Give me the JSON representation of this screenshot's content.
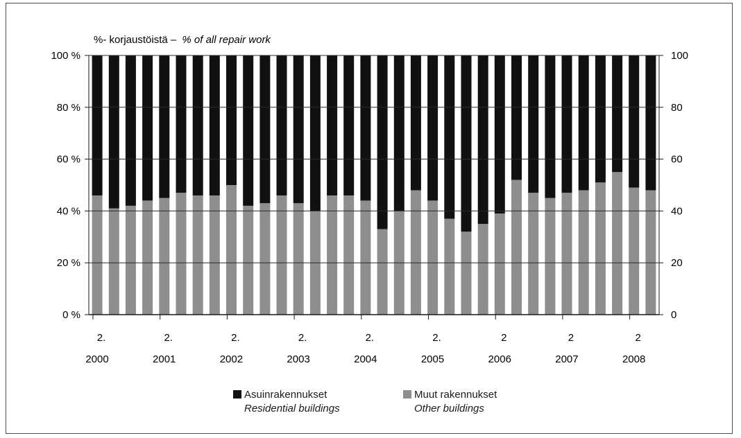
{
  "chart_data": {
    "type": "bar",
    "stacked": true,
    "percent_stacked": true,
    "title_fi": "%- korjaustöistä –",
    "title_en": "% of all repair work",
    "y_ticks_left": [
      "100 %",
      "80 %",
      "60 %",
      "40 %",
      "20 %",
      "0 %"
    ],
    "y_ticks_right": [
      "100",
      "80",
      "60",
      "40",
      "20",
      "0"
    ],
    "ylim": [
      0,
      100
    ],
    "grid": "horizontal",
    "x_labels": [
      {
        "top": "2.",
        "bottom": "2000"
      },
      {
        "top": "2.",
        "bottom": "2001"
      },
      {
        "top": "2.",
        "bottom": "2002"
      },
      {
        "top": "2.",
        "bottom": "2003"
      },
      {
        "top": "2.",
        "bottom": "2004"
      },
      {
        "top": "2.",
        "bottom": "2005"
      },
      {
        "top": "2",
        "bottom": "2006"
      },
      {
        "top": "2",
        "bottom": "2007"
      },
      {
        "top": "2",
        "bottom": "2008"
      }
    ],
    "series": [
      {
        "values": [
          54,
          59,
          58,
          56,
          55,
          53,
          54,
          54,
          50,
          58,
          57,
          54,
          57,
          60,
          54,
          54,
          56,
          67,
          60,
          52,
          56,
          63,
          68,
          65,
          61,
          48,
          53,
          55,
          53,
          52,
          49,
          45,
          51,
          52
        ]
      },
      {
        "values": [
          46,
          41,
          42,
          44,
          45,
          47,
          46,
          46,
          50,
          42,
          43,
          46,
          43,
          40,
          46,
          46,
          44,
          33,
          40,
          48,
          44,
          37,
          32,
          35,
          39,
          52,
          47,
          45,
          47,
          48,
          51,
          55,
          49,
          48
        ]
      }
    ],
    "colors": {
      "residential": "#111111",
      "other": "#8e8e8e"
    }
  },
  "legend": {
    "residential_fi": "Asuinrakennukset",
    "residential_en": "Residential buildings",
    "other_fi": "Muut rakennukset",
    "other_en": "Other buildings"
  }
}
